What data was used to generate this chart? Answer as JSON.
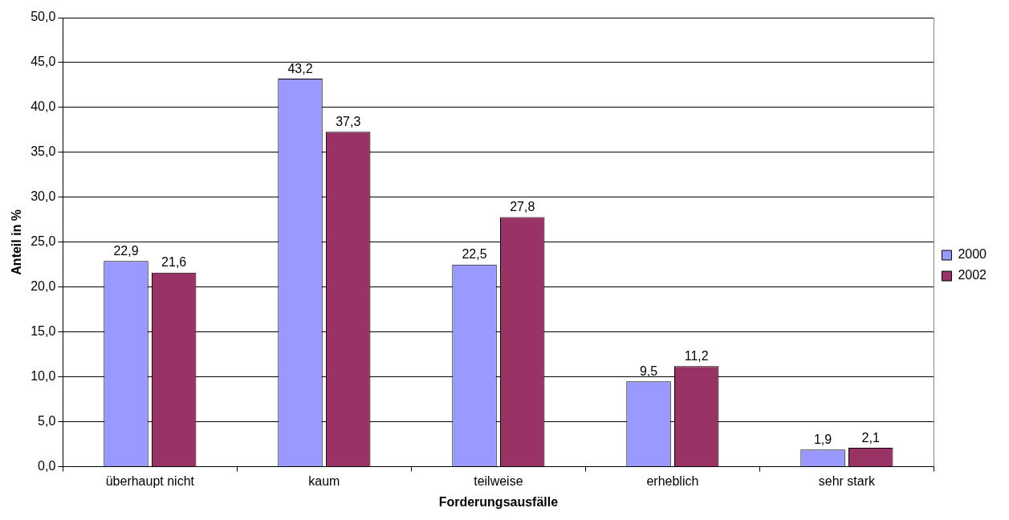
{
  "chart_data": {
    "type": "bar",
    "xlabel": "Forderungsausfälle",
    "ylabel": "Anteil in %",
    "categories": [
      "überhaupt nicht",
      "kaum",
      "teilweise",
      "erheblich",
      "sehr stark"
    ],
    "series": [
      {
        "name": "2000",
        "color": "#9999ff",
        "values": [
          22.9,
          43.2,
          22.5,
          9.5,
          1.9
        ],
        "value_labels": [
          "22,9",
          "43,2",
          "22,5",
          "9,5",
          "1,9"
        ]
      },
      {
        "name": "2002",
        "color": "#993366",
        "values": [
          21.6,
          37.3,
          27.8,
          11.2,
          2.1
        ],
        "value_labels": [
          "21,6",
          "37,3",
          "27,8",
          "11,2",
          "2,1"
        ]
      }
    ],
    "ylim": [
      0,
      50
    ],
    "yticks": [
      {
        "value": 0,
        "label": "0,0"
      },
      {
        "value": 5,
        "label": "5,0"
      },
      {
        "value": 10,
        "label": "10,0"
      },
      {
        "value": 15,
        "label": "15,0"
      },
      {
        "value": 20,
        "label": "20,0"
      },
      {
        "value": 25,
        "label": "25,0"
      },
      {
        "value": 30,
        "label": "30,0"
      },
      {
        "value": 35,
        "label": "35,0"
      },
      {
        "value": 40,
        "label": "40,0"
      },
      {
        "value": 45,
        "label": "45,0"
      },
      {
        "value": 50,
        "label": "50,0"
      }
    ],
    "grid": "y",
    "legend": "right"
  }
}
